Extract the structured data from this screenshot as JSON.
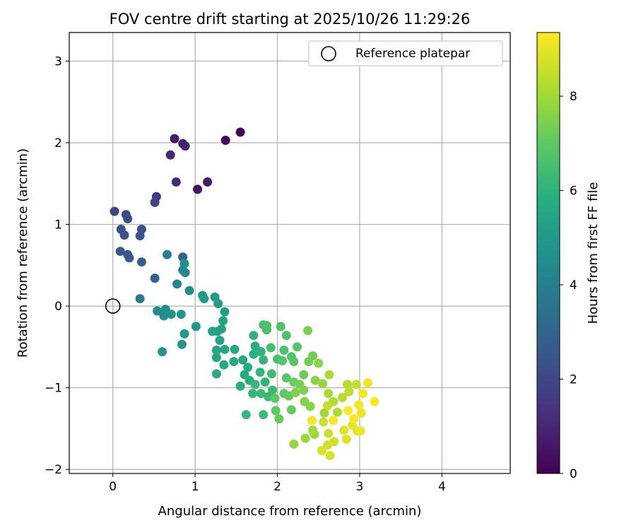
{
  "chart_data": {
    "type": "scatter",
    "title": "FOV centre drift starting at 2025/10/26 11:29:26",
    "xlabel": "Angular distance from reference (arcmin)",
    "ylabel": "Rotation from reference (arcmin)",
    "xlim": [
      -0.53,
      4.83
    ],
    "ylim": [
      -2.05,
      3.35
    ],
    "xticks": [
      0,
      1,
      2,
      3,
      4
    ],
    "yticks": [
      -2,
      -1,
      0,
      1,
      2,
      3
    ],
    "grid": true,
    "legend": {
      "placement": "top-right",
      "entries": [
        "Reference platepar"
      ]
    },
    "reference_point": {
      "x": 0,
      "y": 0,
      "label": "Reference platepar"
    },
    "colorbar": {
      "label": "Hours from first FF file",
      "min": 0,
      "max": 9.35,
      "ticks": [
        0,
        2,
        4,
        6,
        8
      ],
      "colormap": "viridis"
    },
    "series": [
      {
        "name": "FOV centre",
        "fields": [
          "x",
          "y",
          "hours"
        ],
        "points": [
          [
            1.55,
            2.13,
            0.05
          ],
          [
            1.37,
            2.03,
            0.15
          ],
          [
            1.03,
            1.43,
            0.5
          ],
          [
            1.15,
            1.52,
            0.6
          ],
          [
            0.75,
            2.05,
            0.7
          ],
          [
            0.85,
            1.99,
            0.8
          ],
          [
            0.88,
            1.96,
            0.9
          ],
          [
            0.7,
            1.85,
            1.0
          ],
          [
            0.77,
            1.52,
            1.1
          ],
          [
            0.53,
            1.34,
            1.6
          ],
          [
            0.51,
            1.27,
            1.8
          ],
          [
            0.02,
            1.16,
            2.0
          ],
          [
            0.16,
            1.12,
            2.1
          ],
          [
            0.18,
            1.07,
            2.2
          ],
          [
            0.1,
            0.94,
            2.2
          ],
          [
            0.14,
            0.87,
            2.3
          ],
          [
            0.35,
            0.94,
            2.4
          ],
          [
            0.33,
            0.86,
            2.5
          ],
          [
            0.09,
            0.67,
            2.6
          ],
          [
            0.18,
            0.63,
            2.6
          ],
          [
            0.2,
            0.59,
            2.7
          ],
          [
            0.35,
            0.54,
            2.8
          ],
          [
            0.51,
            0.34,
            3.0
          ],
          [
            0.85,
            0.6,
            2.9
          ],
          [
            0.33,
            0.09,
            3.8
          ],
          [
            0.66,
            0.63,
            4.0
          ],
          [
            0.85,
            0.44,
            4.3
          ],
          [
            0.88,
            0.41,
            4.4
          ],
          [
            0.87,
            0.52,
            4.6
          ],
          [
            0.78,
            0.27,
            4.3
          ],
          [
            0.93,
            0.19,
            4.4
          ],
          [
            0.54,
            -0.06,
            4.5
          ],
          [
            0.64,
            -0.04,
            4.5
          ],
          [
            0.62,
            -0.12,
            4.6
          ],
          [
            0.71,
            -0.1,
            4.7
          ],
          [
            0.83,
            -0.1,
            4.8
          ],
          [
            0.6,
            -0.56,
            4.8
          ],
          [
            0.84,
            -0.47,
            4.9
          ],
          [
            0.87,
            -0.34,
            5.0
          ],
          [
            1.01,
            -0.25,
            4.9
          ],
          [
            1.09,
            0.13,
            4.9
          ],
          [
            1.11,
            0.09,
            5.0
          ],
          [
            1.24,
            0.11,
            5.1
          ],
          [
            1.28,
            0.03,
            5.1
          ],
          [
            1.36,
            -0.07,
            5.2
          ],
          [
            1.34,
            -0.18,
            5.3
          ],
          [
            1.21,
            -0.31,
            5.3
          ],
          [
            1.27,
            -0.31,
            5.3
          ],
          [
            1.32,
            -0.28,
            5.4
          ],
          [
            1.3,
            -0.42,
            5.4
          ],
          [
            1.26,
            -0.54,
            5.5
          ],
          [
            1.26,
            -0.63,
            5.5
          ],
          [
            1.36,
            -0.53,
            5.5
          ],
          [
            1.48,
            -0.53,
            5.6
          ],
          [
            1.47,
            -0.68,
            5.6
          ],
          [
            1.35,
            -0.72,
            5.6
          ],
          [
            1.26,
            -0.83,
            5.6
          ],
          [
            1.58,
            -0.66,
            5.7
          ],
          [
            1.6,
            -0.84,
            5.7
          ],
          [
            1.55,
            -0.98,
            5.8
          ],
          [
            1.66,
            -0.91,
            5.8
          ],
          [
            1.64,
            -0.75,
            5.8
          ],
          [
            1.71,
            -0.59,
            5.9
          ],
          [
            1.73,
            -0.49,
            5.9
          ],
          [
            1.71,
            -0.36,
            6.0
          ],
          [
            1.8,
            -0.56,
            6.0
          ],
          [
            1.83,
            -0.66,
            6.1
          ],
          [
            1.79,
            -0.81,
            6.1
          ],
          [
            1.85,
            -0.93,
            6.1
          ],
          [
            1.73,
            -0.96,
            6.2
          ],
          [
            1.7,
            -1.07,
            6.2
          ],
          [
            1.62,
            -1.33,
            6.2
          ],
          [
            1.8,
            -1.07,
            6.3
          ],
          [
            1.89,
            -1.11,
            6.3
          ],
          [
            1.94,
            -1.03,
            6.3
          ],
          [
            1.83,
            -1.33,
            6.4
          ],
          [
            1.93,
            -0.83,
            6.4
          ],
          [
            2.0,
            -0.65,
            6.5
          ],
          [
            1.92,
            -0.51,
            6.5
          ],
          [
            1.83,
            -0.23,
            6.6
          ],
          [
            1.87,
            -0.24,
            6.6
          ],
          [
            1.87,
            -0.29,
            6.6
          ],
          [
            2.04,
            -0.25,
            6.7
          ],
          [
            2.11,
            -0.36,
            6.7
          ],
          [
            2.08,
            -0.54,
            6.7
          ],
          [
            2.06,
            -0.67,
            6.8
          ],
          [
            2.17,
            -0.62,
            6.8
          ],
          [
            2.24,
            -0.5,
            6.8
          ],
          [
            2.2,
            -0.68,
            6.9
          ],
          [
            2.11,
            -0.88,
            6.9
          ],
          [
            2.08,
            -1.07,
            7.0
          ],
          [
            1.97,
            -1.13,
            7.0
          ],
          [
            1.98,
            -1.28,
            7.0
          ],
          [
            2.02,
            -1.38,
            7.1
          ],
          [
            2.17,
            -1.27,
            7.1
          ],
          [
            2.14,
            -1.1,
            7.1
          ],
          [
            2.2,
            -0.93,
            7.2
          ],
          [
            2.32,
            -0.84,
            7.2
          ],
          [
            2.38,
            -0.68,
            7.3
          ],
          [
            2.43,
            -0.61,
            7.3
          ],
          [
            2.37,
            -0.3,
            7.4
          ],
          [
            2.27,
            -0.96,
            7.4
          ],
          [
            2.32,
            -1.03,
            7.5
          ],
          [
            2.22,
            -1.06,
            7.5
          ],
          [
            2.33,
            -1.17,
            7.6
          ],
          [
            2.4,
            -1.23,
            7.6
          ],
          [
            2.46,
            -0.91,
            7.7
          ],
          [
            2.5,
            -0.7,
            7.7
          ],
          [
            2.55,
            -0.95,
            7.8
          ],
          [
            2.2,
            -1.69,
            7.8
          ],
          [
            2.34,
            -1.62,
            7.9
          ],
          [
            2.45,
            -1.57,
            7.9
          ],
          [
            2.43,
            -1.52,
            8.0
          ],
          [
            2.57,
            -1.31,
            8.0
          ],
          [
            2.63,
            -0.84,
            8.1
          ],
          [
            2.62,
            -1.07,
            8.1
          ],
          [
            2.68,
            -1.17,
            8.2
          ],
          [
            2.73,
            -1.3,
            8.2
          ],
          [
            2.79,
            -1.12,
            8.3
          ],
          [
            2.85,
            -0.96,
            8.3
          ],
          [
            2.87,
            -1.05,
            8.4
          ],
          [
            2.96,
            -0.96,
            8.5
          ],
          [
            2.61,
            -1.22,
            8.5
          ],
          [
            2.56,
            -1.42,
            8.6
          ],
          [
            2.62,
            -1.56,
            8.6
          ],
          [
            2.69,
            -1.66,
            8.7
          ],
          [
            2.61,
            -1.7,
            8.7
          ],
          [
            2.54,
            -1.77,
            8.8
          ],
          [
            2.64,
            -1.83,
            8.8
          ],
          [
            2.81,
            -1.52,
            8.9
          ],
          [
            2.84,
            -1.63,
            8.9
          ],
          [
            2.91,
            -1.46,
            9.0
          ],
          [
            2.97,
            -1.53,
            9.0
          ],
          [
            3.01,
            -1.53,
            9.1
          ],
          [
            3.02,
            -1.31,
            9.1
          ],
          [
            2.99,
            -1.21,
            9.2
          ],
          [
            3.04,
            -1.07,
            9.2
          ],
          [
            3.1,
            -0.94,
            9.2
          ],
          [
            3.18,
            -1.17,
            9.3
          ],
          [
            2.93,
            -1.38,
            9.3
          ],
          [
            2.86,
            -1.28,
            9.3
          ],
          [
            2.42,
            -1.4,
            9.2
          ],
          [
            2.68,
            -1.4,
            9.3
          ]
        ]
      }
    ]
  }
}
